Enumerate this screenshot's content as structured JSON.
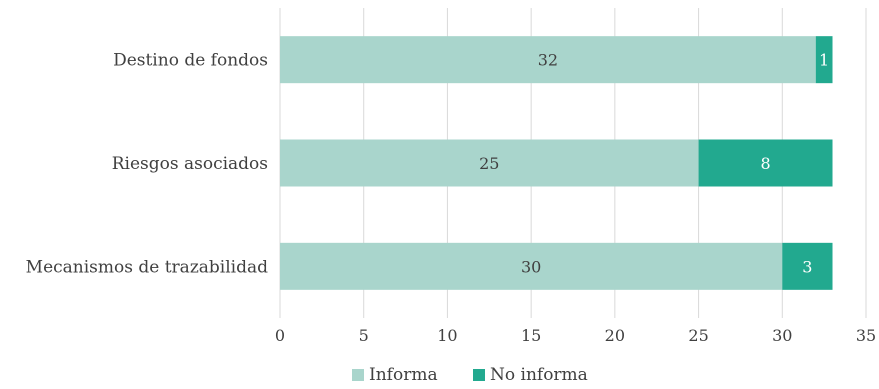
{
  "chart_data": {
    "type": "bar",
    "orientation": "horizontal",
    "stacked": true,
    "categories": [
      "Destino de fondos",
      "Riesgos asociados",
      "Mecanismos de trazabilidad"
    ],
    "series": [
      {
        "name": "Informa",
        "values": [
          32,
          25,
          30
        ],
        "color": "#a9d5cc",
        "label_color": "#404040"
      },
      {
        "name": "No informa",
        "values": [
          1,
          8,
          3
        ],
        "color": "#22a98f",
        "label_color": "#ffffff"
      }
    ],
    "xlim": [
      0,
      35
    ],
    "xticks": [
      0,
      5,
      10,
      15,
      20,
      25,
      30,
      35
    ],
    "grid": true,
    "legend": "bottom-center"
  }
}
